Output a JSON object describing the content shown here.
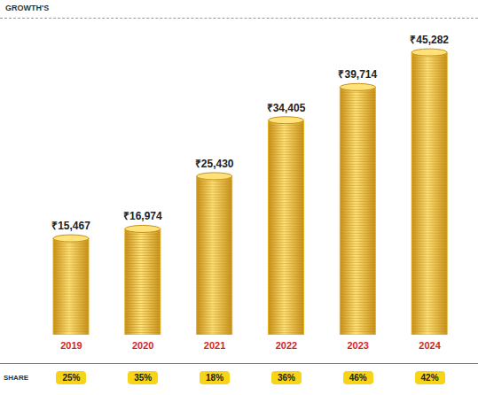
{
  "chart_data": {
    "type": "bar",
    "title": "GROWTH'S",
    "categories": [
      "2019",
      "2020",
      "2021",
      "2022",
      "2023",
      "2024"
    ],
    "values": [
      15467,
      16974,
      25430,
      34405,
      39714,
      45282
    ],
    "value_labels": [
      "₹15,467",
      "₹16,974",
      "₹25,430",
      "₹34,405",
      "₹39,714",
      "₹45,282"
    ],
    "color": "#e8b523",
    "ylim": [
      0,
      48000
    ],
    "data_labels": true,
    "tick_labels": "x",
    "grid": false,
    "share": {
      "label": "SHARE",
      "values": [
        25,
        35,
        18,
        36,
        46,
        42
      ],
      "value_labels": [
        "25%",
        "35%",
        "18%",
        "36%",
        "46%",
        "42%"
      ]
    }
  }
}
